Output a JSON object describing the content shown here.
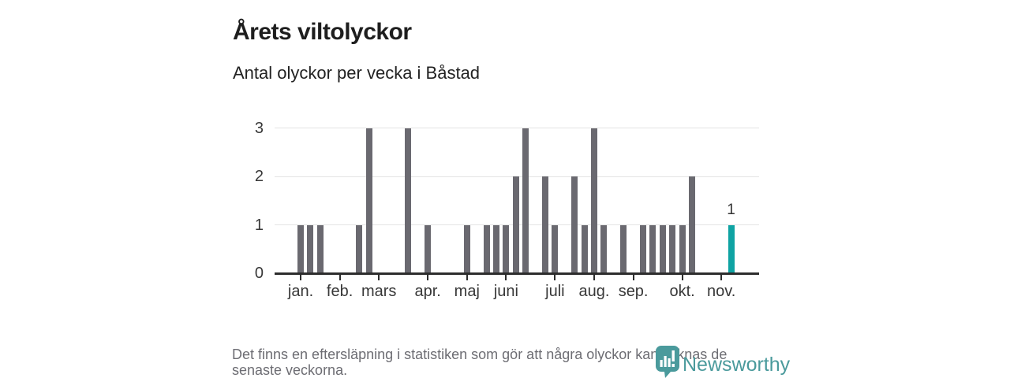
{
  "header": {
    "title": "Årets viltolyckor",
    "subtitle": "Antal olyckor per vecka i Båstad"
  },
  "footer": {
    "note_line1": "Det finns en eftersläpning i statistiken som gör att några olyckor kan saknas de",
    "note_line2": "senaste veckorna.",
    "logo_text": "Newsworthy"
  },
  "colors": {
    "bar": "#6a6970",
    "highlight_bar": "#0fa3a3",
    "grid": "#e4e4e4",
    "axis": "#2d2d2d",
    "label_text": "#383838",
    "muted_text": "#6d6d73",
    "logo_teal": "#4a9a9c"
  },
  "chart_data": {
    "type": "bar",
    "title": "Årets viltolyckor",
    "subtitle": "Antal olyckor per vecka i Båstad",
    "x_unit": "week",
    "first_week": 1,
    "values": [
      1,
      1,
      1,
      0,
      0,
      0,
      1,
      3,
      0,
      0,
      0,
      3,
      0,
      1,
      0,
      0,
      0,
      1,
      0,
      1,
      1,
      1,
      2,
      3,
      0,
      2,
      1,
      0,
      2,
      1,
      3,
      1,
      0,
      1,
      0,
      1,
      1,
      1,
      1,
      1,
      2,
      0,
      0,
      0,
      1
    ],
    "highlight_week": 45,
    "highlight_value_label": "1",
    "y_ticks": [
      0,
      1,
      2,
      3
    ],
    "ylim": [
      0,
      3
    ],
    "grid": true,
    "legend": false,
    "month_ticks": [
      {
        "label": "jan.",
        "week": 1
      },
      {
        "label": "feb.",
        "week": 5
      },
      {
        "label": "mars",
        "week": 9
      },
      {
        "label": "apr.",
        "week": 14
      },
      {
        "label": "maj",
        "week": 18
      },
      {
        "label": "juni",
        "week": 22
      },
      {
        "label": "juli",
        "week": 27
      },
      {
        "label": "aug.",
        "week": 31
      },
      {
        "label": "sep.",
        "week": 35
      },
      {
        "label": "okt.",
        "week": 40
      },
      {
        "label": "nov.",
        "week": 44
      }
    ]
  }
}
